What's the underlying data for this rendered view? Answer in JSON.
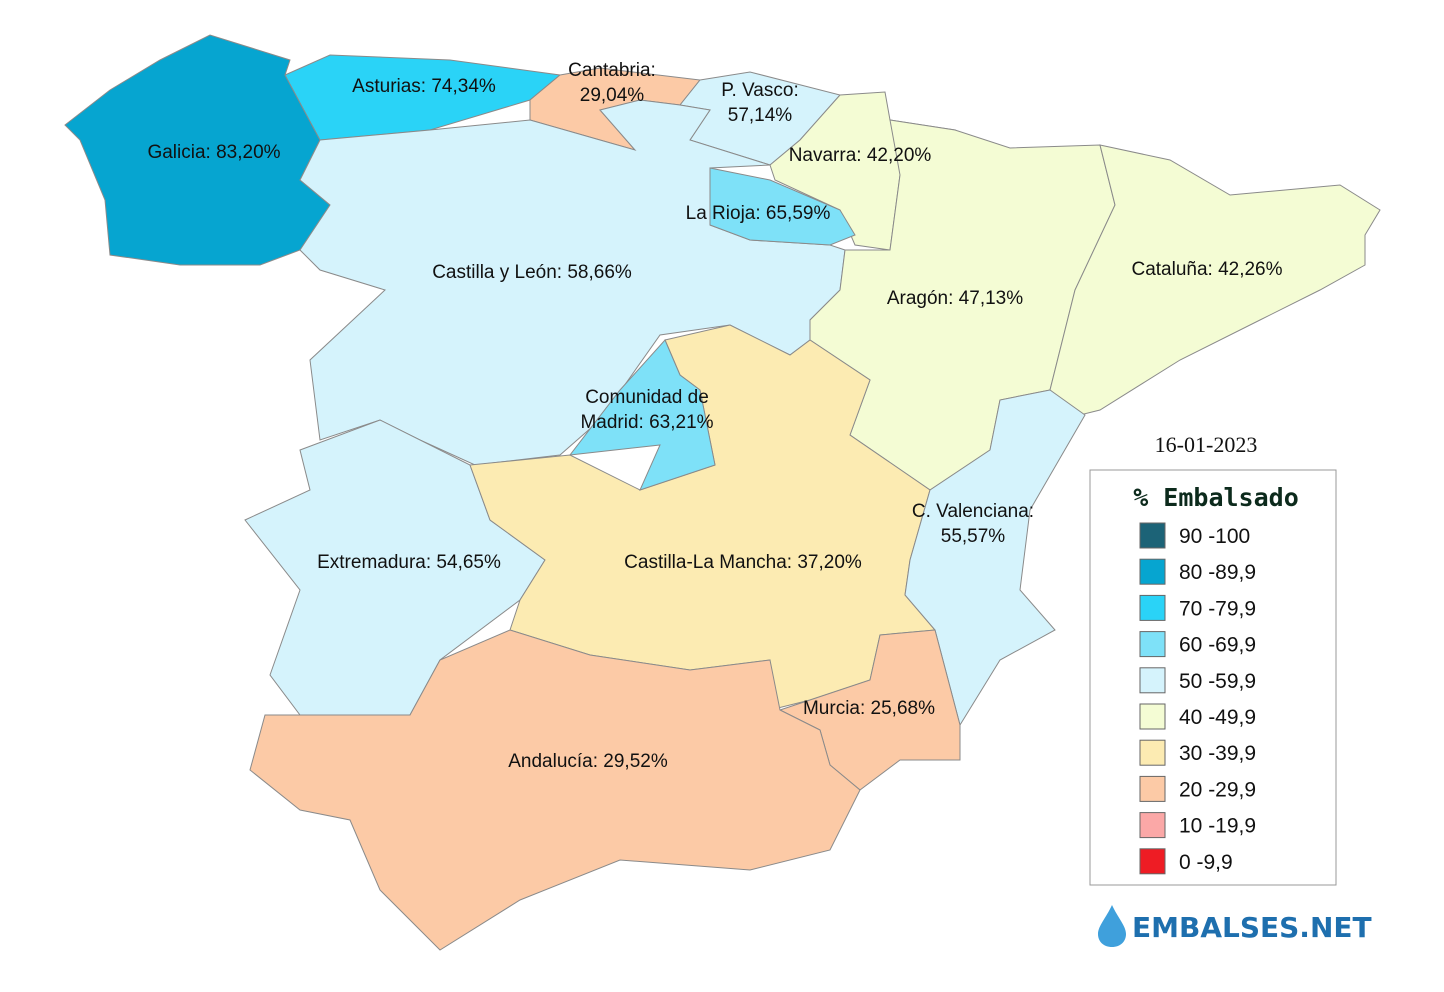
{
  "date": "16-01-2023",
  "legend": {
    "title": "% Embalsado",
    "items": [
      {
        "label": "90 -100",
        "color": "#1c6377"
      },
      {
        "label": "80 -89,9",
        "color": "#06a5d0"
      },
      {
        "label": "70 -79,9",
        "color": "#2ad3f7"
      },
      {
        "label": "60 -69,9",
        "color": "#7ee1f8"
      },
      {
        "label": "50 -59,9",
        "color": "#d5f3fc"
      },
      {
        "label": "40 -49,9",
        "color": "#f4fcd4"
      },
      {
        "label": "30 -39,9",
        "color": "#fcebb2"
      },
      {
        "label": "20 -29,9",
        "color": "#fccaa6"
      },
      {
        "label": "10 -19,9",
        "color": "#fba8a7"
      },
      {
        "label": "0 -9,9",
        "color": "#ee1c24"
      }
    ]
  },
  "regions": [
    {
      "lines": [
        "Galicia: 83,20%"
      ],
      "color": "#06a5d0"
    },
    {
      "lines": [
        "Asturias: 74,34%"
      ],
      "color": "#2ad3f7"
    },
    {
      "lines": [
        "Cantabria:",
        "29,04%"
      ],
      "color": "#fccaa6"
    },
    {
      "lines": [
        "P. Vasco:",
        "57,14%"
      ],
      "color": "#d5f3fc"
    },
    {
      "lines": [
        "Navarra: 42,20%"
      ],
      "color": "#f4fcd4"
    },
    {
      "lines": [
        "La Rioja: 65,59%"
      ],
      "color": "#7ee1f8"
    },
    {
      "lines": [
        "Castilla y León: 58,66%"
      ],
      "color": "#d5f3fc"
    },
    {
      "lines": [
        "Aragón: 47,13%"
      ],
      "color": "#f4fcd4"
    },
    {
      "lines": [
        "Cataluña: 42,26%"
      ],
      "color": "#f4fcd4"
    },
    {
      "lines": [
        "Extremadura: 54,65%"
      ],
      "color": "#d5f3fc"
    },
    {
      "lines": [
        "Castilla-La Mancha: 37,20%"
      ],
      "color": "#fcebb2"
    },
    {
      "lines": [
        "Comunidad de",
        "Madrid: 63,21%"
      ],
      "color": "#7ee1f8"
    },
    {
      "lines": [
        "C. Valenciana:",
        "55,57%"
      ],
      "color": "#d5f3fc"
    },
    {
      "lines": [
        "Murcia: 25,68%"
      ],
      "color": "#fccaa6"
    },
    {
      "lines": [
        "Andalucía: 29,52%"
      ],
      "color": "#fccaa6"
    }
  ],
  "logo": "EMBALSES.NET"
}
